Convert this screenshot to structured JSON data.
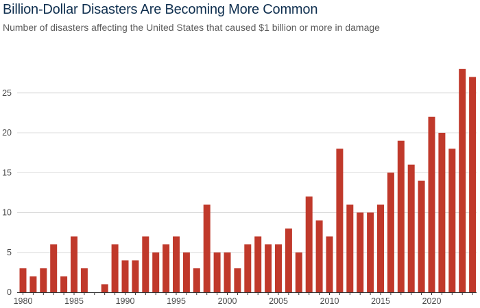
{
  "chart_data": {
    "type": "bar",
    "title": "Billion-Dollar Disasters Are Becoming More Common",
    "subtitle": "Number of disasters affecting the United States that caused $1 billion or more in damage",
    "xlabel": "",
    "ylabel": "",
    "x": [
      1980,
      1981,
      1982,
      1983,
      1984,
      1985,
      1986,
      1987,
      1988,
      1989,
      1990,
      1991,
      1992,
      1993,
      1994,
      1995,
      1996,
      1997,
      1998,
      1999,
      2000,
      2001,
      2002,
      2003,
      2004,
      2005,
      2006,
      2007,
      2008,
      2009,
      2010,
      2011,
      2012,
      2013,
      2014,
      2015,
      2016,
      2017,
      2018,
      2019,
      2020,
      2021,
      2022,
      2023,
      2024
    ],
    "values": [
      3,
      2,
      3,
      6,
      2,
      7,
      3,
      0,
      1,
      6,
      4,
      4,
      7,
      5,
      6,
      7,
      5,
      3,
      11,
      5,
      5,
      3,
      6,
      7,
      6,
      6,
      8,
      5,
      12,
      9,
      7,
      18,
      11,
      10,
      10,
      11,
      15,
      19,
      16,
      14,
      22,
      20,
      18,
      28,
      27
    ],
    "x_ticks": [
      "1980",
      "1985",
      "1990",
      "1995",
      "2000",
      "2005",
      "2010",
      "2015",
      "2020"
    ],
    "y_ticks": [
      "0",
      "5",
      "10",
      "15",
      "20",
      "25"
    ],
    "ylim": [
      0,
      30
    ],
    "grid": true,
    "legend": "none",
    "bar_color": "#c0392b",
    "grid_color": "#dcdcdc",
    "axis_color": "#333333"
  }
}
